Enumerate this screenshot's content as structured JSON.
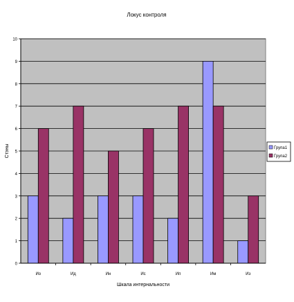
{
  "chart_data": {
    "type": "bar",
    "title": "Локус контроля",
    "xlabel": "Шкала интернальности",
    "ylabel": "Стэны",
    "categories": [
      "Ио",
      "Ид",
      "Ин",
      "Ис",
      "Ип",
      "Им",
      "Из"
    ],
    "ylim": [
      0,
      10
    ],
    "yticks": [
      0,
      1,
      2,
      3,
      4,
      5,
      6,
      7,
      8,
      9,
      10
    ],
    "grid": true,
    "legend_position": "right",
    "plot_background": "#c0c0c0",
    "series": [
      {
        "name": "Група1",
        "color": "#9999ff",
        "values": [
          3,
          2,
          3,
          3,
          2,
          9,
          1
        ]
      },
      {
        "name": "Група2",
        "color": "#993366",
        "values": [
          6,
          7,
          5,
          6,
          7,
          7,
          3
        ]
      }
    ]
  }
}
